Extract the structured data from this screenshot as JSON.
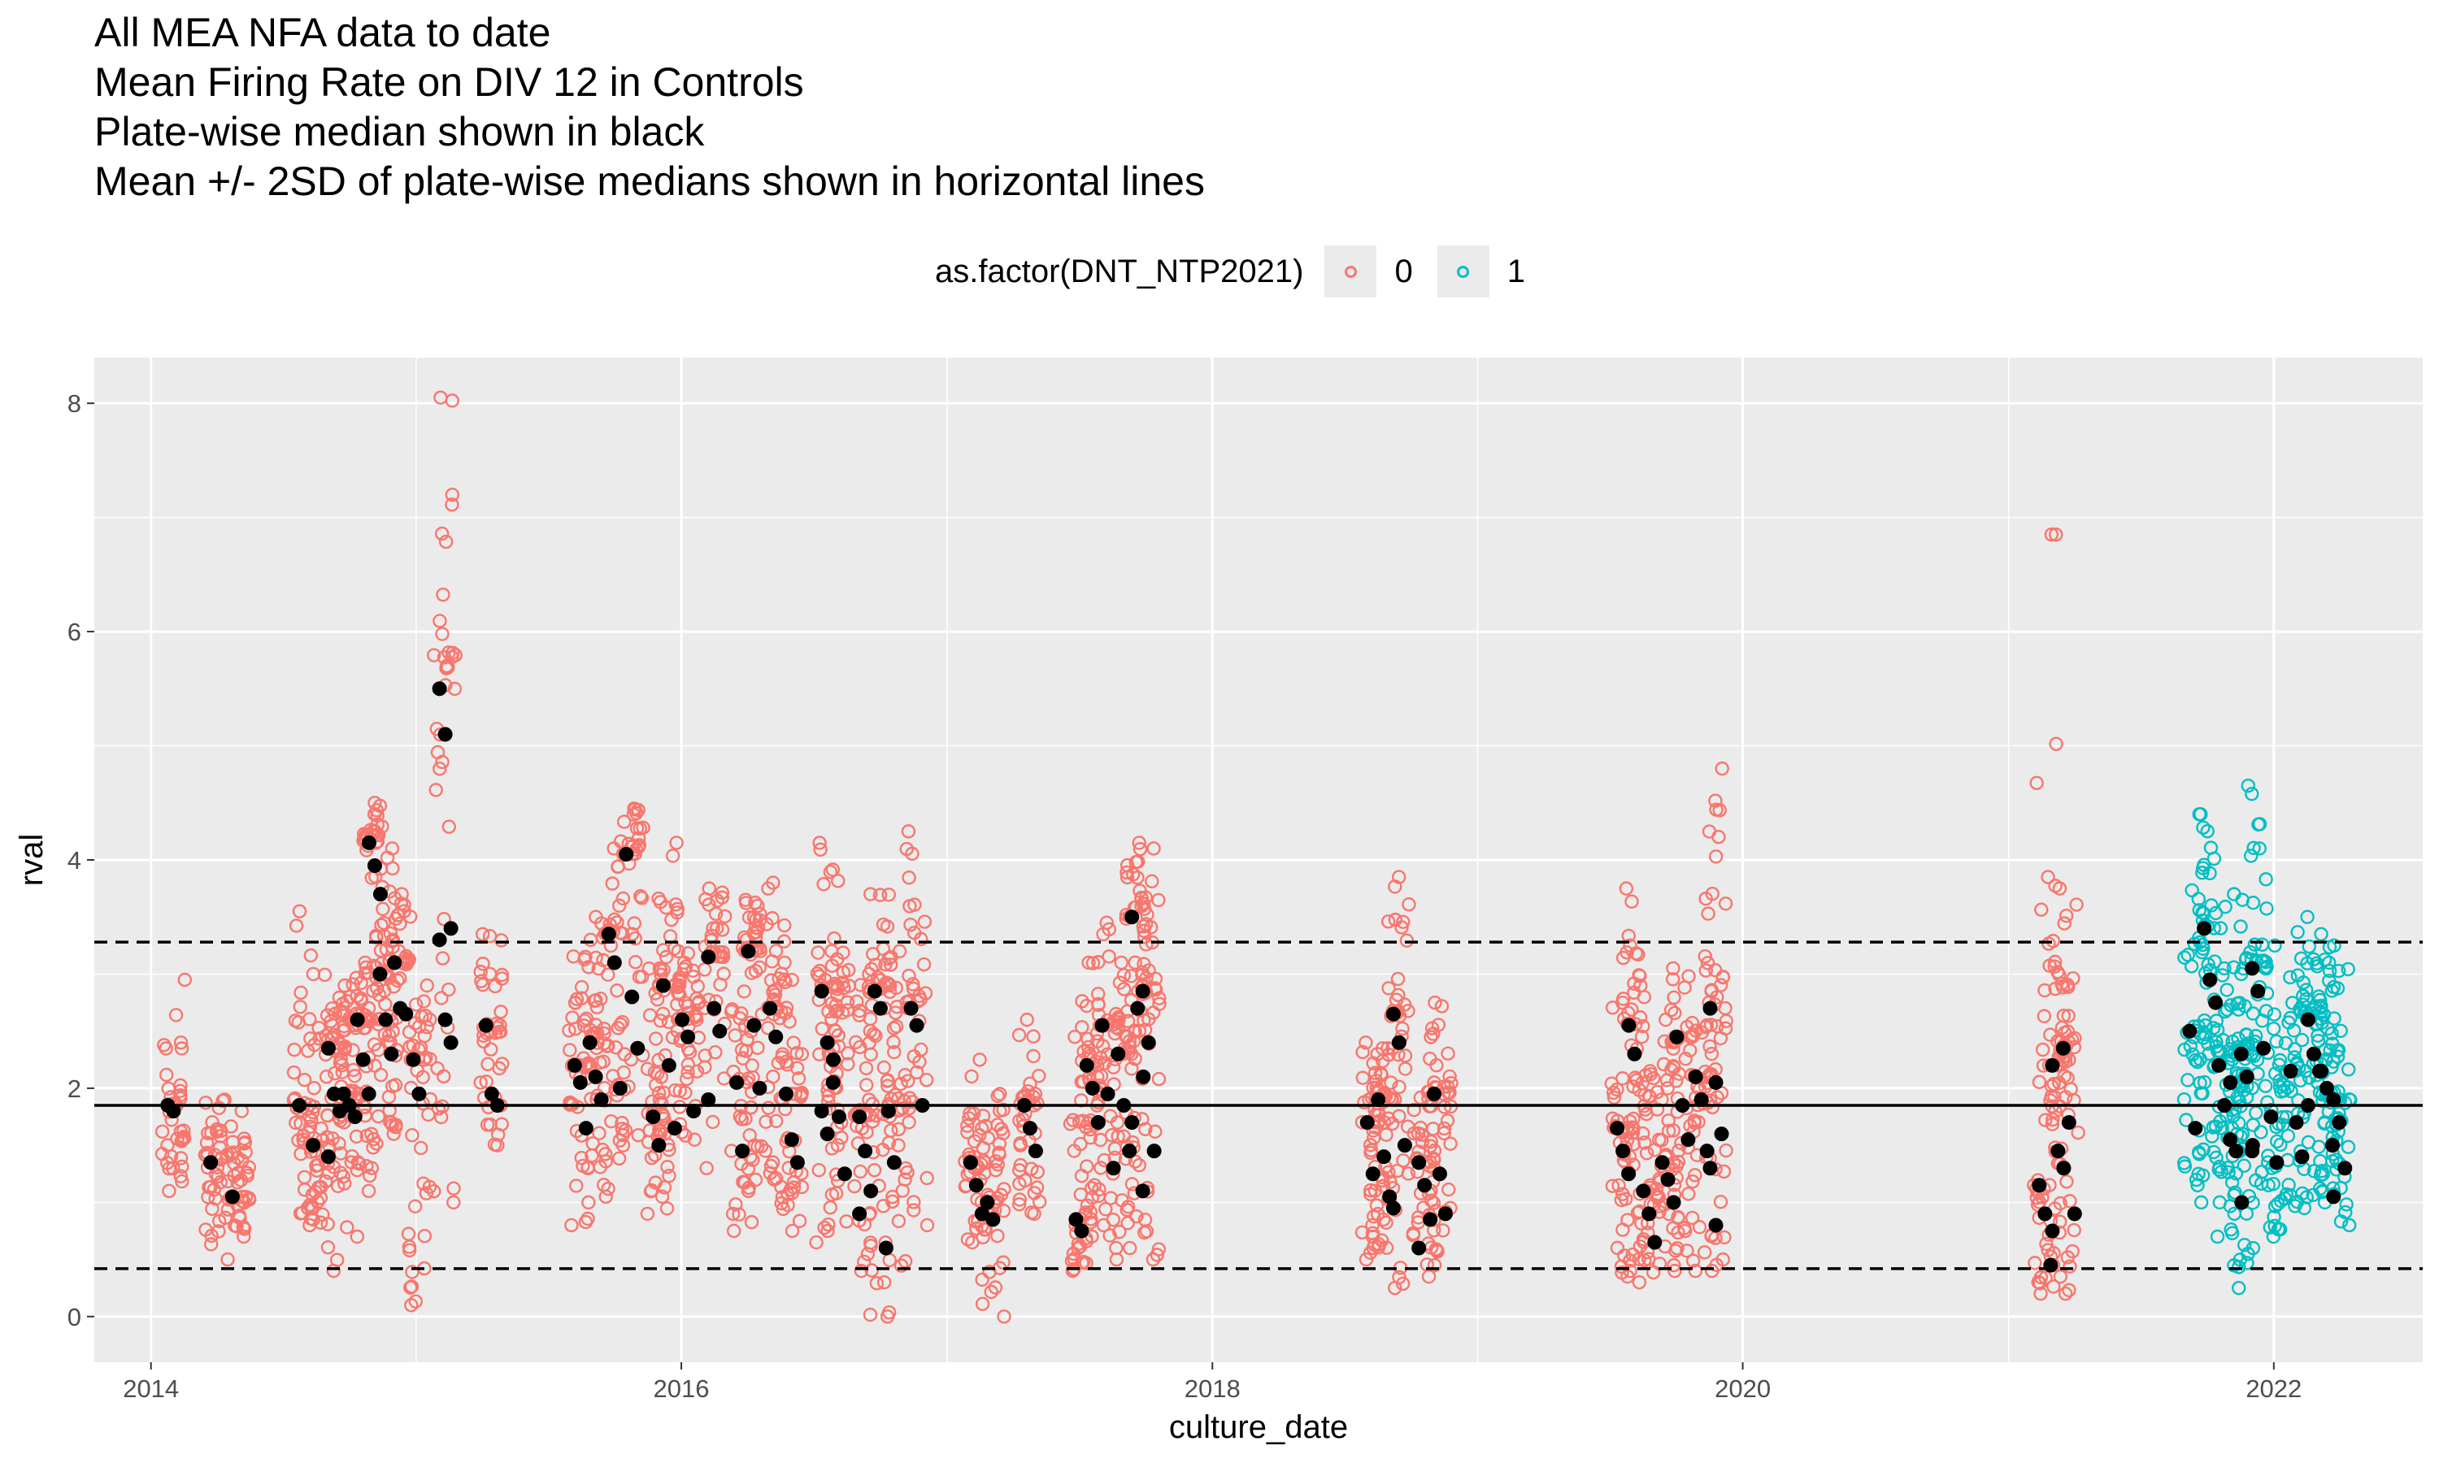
{
  "chart_data": {
    "type": "scatter",
    "title_lines": [
      "All MEA NFA data to date",
      "Mean Firing Rate on DIV 12 in Controls",
      "Plate-wise median shown in black",
      "Mean +/- 2SD of plate-wise medians shown in horizontal lines"
    ],
    "xlabel": "culture_date",
    "ylabel": "rval",
    "x_type": "date",
    "xlim": [
      "2013-10-15",
      "2022-07-25"
    ],
    "ylim": [
      -0.4,
      8.4
    ],
    "x_ticks": [
      "2014-01-01",
      "2016-01-01",
      "2018-01-01",
      "2020-01-01",
      "2022-01-01"
    ],
    "x_tick_labels": [
      "2014",
      "2016",
      "2018",
      "2020",
      "2022"
    ],
    "y_ticks": [
      0,
      2,
      4,
      6,
      8
    ],
    "y_tick_labels": [
      "0",
      "2",
      "4",
      "6",
      "8"
    ],
    "grid": true,
    "legend": {
      "title": "as.factor(DNT_NTP2021)",
      "position": "top",
      "entries": [
        {
          "label": "0",
          "color": "#F8766D"
        },
        {
          "label": "1",
          "color": "#00BFC4"
        }
      ]
    },
    "colors": {
      "group0": "#F8766D",
      "group1": "#00BFC4",
      "median": "#000000",
      "panel": "#EBEBEB",
      "grid": "#FFFFFF"
    },
    "reference_lines": [
      {
        "y": 1.85,
        "style": "solid"
      },
      {
        "y": 3.28,
        "style": "dashed"
      },
      {
        "y": 0.42,
        "style": "dashed"
      }
    ],
    "groups": [
      {
        "date": "2014-02-01",
        "g": 0,
        "min": 1.1,
        "max": 2.95,
        "med": [
          1.85,
          1.8
        ]
      },
      {
        "date": "2014-04-01",
        "g": 0,
        "min": 0.5,
        "max": 1.9,
        "med": [
          1.35
        ]
      },
      {
        "date": "2014-05-01",
        "g": 0,
        "min": 0.7,
        "max": 1.8,
        "med": [
          1.05
        ]
      },
      {
        "date": "2014-08-01",
        "g": 0,
        "min": 0.85,
        "max": 3.55,
        "med": [
          1.85
        ]
      },
      {
        "date": "2014-08-20",
        "g": 0,
        "min": 0.8,
        "max": 3.0,
        "med": [
          1.5
        ]
      },
      {
        "date": "2014-09-10",
        "g": 0,
        "min": 0.4,
        "max": 2.9,
        "med": [
          2.35,
          1.95,
          1.8,
          1.4
        ]
      },
      {
        "date": "2014-10-01",
        "g": 0,
        "min": 0.7,
        "max": 2.8,
        "med": [
          1.95,
          1.85,
          1.75
        ]
      },
      {
        "date": "2014-10-20",
        "g": 0,
        "min": 1.1,
        "max": 3.1,
        "med": [
          2.6,
          2.25,
          1.95
        ]
      },
      {
        "date": "2014-11-05",
        "g": 0,
        "min": 1.3,
        "max": 4.5,
        "med": [
          4.15,
          3.95,
          3.7
        ]
      },
      {
        "date": "2014-11-20",
        "g": 0,
        "min": 1.6,
        "max": 4.1,
        "med": [
          3.0,
          2.6,
          2.3
        ]
      },
      {
        "date": "2014-12-10",
        "g": 0,
        "min": 1.7,
        "max": 3.7,
        "med": [
          3.1,
          2.7,
          2.65
        ]
      },
      {
        "date": "2015-01-05",
        "g": 0,
        "min": 0.1,
        "max": 2.9,
        "med": [
          2.25,
          1.95
        ]
      },
      {
        "date": "2015-02-10",
        "g": 0,
        "min": 1.0,
        "max": 8.05,
        "med": [
          5.5,
          5.1,
          3.4,
          3.3,
          2.6,
          2.4
        ]
      },
      {
        "date": "2015-04-15",
        "g": 0,
        "min": 1.5,
        "max": 3.35,
        "med": [
          2.55,
          1.95,
          1.85
        ]
      },
      {
        "date": "2015-08-15",
        "g": 0,
        "min": 0.8,
        "max": 3.3,
        "med": [
          2.2,
          2.05,
          1.65
        ]
      },
      {
        "date": "2015-09-05",
        "g": 0,
        "min": 1.0,
        "max": 3.5,
        "med": [
          2.4,
          2.1,
          1.9
        ]
      },
      {
        "date": "2015-10-01",
        "g": 0,
        "min": 1.05,
        "max": 4.1,
        "med": [
          3.35,
          3.1,
          2.0
        ]
      },
      {
        "date": "2015-10-25",
        "g": 0,
        "min": 1.5,
        "max": 4.45,
        "med": [
          4.05,
          2.8,
          2.35
        ]
      },
      {
        "date": "2015-12-01",
        "g": 0,
        "min": 0.9,
        "max": 3.05,
        "med": [
          1.75,
          1.5
        ]
      },
      {
        "date": "2015-12-15",
        "g": 0,
        "min": 1.6,
        "max": 4.15,
        "med": [
          2.9,
          2.2,
          1.65
        ]
      },
      {
        "date": "2016-01-10",
        "g": 0,
        "min": 1.55,
        "max": 3.2,
        "med": [
          2.6,
          2.45,
          1.8
        ]
      },
      {
        "date": "2016-02-15",
        "g": 0,
        "min": 1.3,
        "max": 3.75,
        "med": [
          3.15,
          2.7,
          2.5,
          1.9
        ]
      },
      {
        "date": "2016-03-25",
        "g": 0,
        "min": 0.75,
        "max": 3.3,
        "med": [
          2.05,
          1.45
        ]
      },
      {
        "date": "2016-04-10",
        "g": 0,
        "min": 1.1,
        "max": 3.65,
        "med": [
          3.2,
          2.55,
          2.0
        ]
      },
      {
        "date": "2016-05-10",
        "g": 0,
        "min": 1.2,
        "max": 3.8,
        "med": [
          2.7,
          2.45
        ]
      },
      {
        "date": "2016-06-01",
        "g": 0,
        "min": 0.75,
        "max": 3.1,
        "med": [
          1.95,
          1.55,
          1.35
        ]
      },
      {
        "date": "2016-07-20",
        "g": 0,
        "min": 0.65,
        "max": 4.15,
        "med": [
          2.85,
          2.4,
          2.05,
          1.8,
          1.6
        ]
      },
      {
        "date": "2016-08-05",
        "g": 0,
        "min": 0.75,
        "max": 3.2,
        "med": [
          2.25,
          1.75,
          1.25
        ]
      },
      {
        "date": "2016-09-10",
        "g": 0,
        "min": 0.4,
        "max": 3.0,
        "med": [
          1.75,
          1.45,
          1.1,
          0.9
        ]
      },
      {
        "date": "2016-10-01",
        "g": 0,
        "min": 0.0,
        "max": 3.7,
        "med": [
          2.85,
          2.7,
          0.6
        ]
      },
      {
        "date": "2016-10-20",
        "g": 0,
        "min": 0.3,
        "max": 3.2,
        "med": [
          1.8,
          1.35
        ]
      },
      {
        "date": "2016-11-20",
        "g": 0,
        "min": 0.8,
        "max": 4.25,
        "med": [
          2.7,
          2.55,
          1.85
        ]
      },
      {
        "date": "2017-02-10",
        "g": 0,
        "min": 0.65,
        "max": 2.25,
        "med": [
          1.35,
          1.15,
          0.9
        ]
      },
      {
        "date": "2017-03-05",
        "g": 0,
        "min": 0.0,
        "max": 1.95,
        "med": [
          1.0,
          0.85
        ]
      },
      {
        "date": "2017-04-25",
        "g": 0,
        "min": 0.9,
        "max": 2.6,
        "med": [
          1.85,
          1.65,
          1.45
        ]
      },
      {
        "date": "2017-07-05",
        "g": 0,
        "min": 0.4,
        "max": 2.45,
        "med": [
          0.85,
          0.75
        ]
      },
      {
        "date": "2017-07-20",
        "g": 0,
        "min": 0.8,
        "max": 3.1,
        "med": [
          2.2,
          2.0,
          1.7
        ]
      },
      {
        "date": "2017-08-10",
        "g": 0,
        "min": 0.6,
        "max": 3.45,
        "med": [
          2.55,
          1.95,
          1.3
        ]
      },
      {
        "date": "2017-09-01",
        "g": 0,
        "min": 0.5,
        "max": 3.1,
        "med": [
          2.3,
          1.85,
          1.45
        ]
      },
      {
        "date": "2017-09-20",
        "g": 0,
        "min": 0.6,
        "max": 4.15,
        "med": [
          3.5,
          2.7,
          2.1,
          1.7
        ]
      },
      {
        "date": "2017-10-05",
        "g": 0,
        "min": 0.5,
        "max": 4.1,
        "med": [
          2.85,
          2.4,
          1.45,
          1.1
        ]
      },
      {
        "date": "2018-08-10",
        "g": 0,
        "min": 0.5,
        "max": 2.4,
        "med": [
          1.7,
          1.25
        ]
      },
      {
        "date": "2018-08-25",
        "g": 0,
        "min": 0.6,
        "max": 2.35,
        "med": [
          1.9,
          1.4,
          1.05
        ]
      },
      {
        "date": "2018-09-15",
        "g": 0,
        "min": 0.25,
        "max": 3.85,
        "med": [
          2.65,
          2.4,
          1.5,
          0.95
        ]
      },
      {
        "date": "2018-10-20",
        "g": 0,
        "min": 0.35,
        "max": 2.05,
        "med": [
          1.35,
          1.15,
          0.85,
          0.6
        ]
      },
      {
        "date": "2018-11-10",
        "g": 0,
        "min": 0.45,
        "max": 2.75,
        "med": [
          1.95,
          1.25,
          0.9
        ]
      },
      {
        "date": "2019-07-20",
        "g": 0,
        "min": 0.35,
        "max": 2.75,
        "med": [
          1.65,
          1.45,
          1.25
        ]
      },
      {
        "date": "2019-08-05",
        "g": 0,
        "min": 0.4,
        "max": 3.75,
        "med": [
          2.55,
          2.3
        ]
      },
      {
        "date": "2019-08-25",
        "g": 0,
        "min": 0.3,
        "max": 2.15,
        "med": [
          1.1,
          0.9,
          0.65
        ]
      },
      {
        "date": "2019-09-20",
        "g": 0,
        "min": 0.45,
        "max": 2.6,
        "med": [
          1.35,
          1.2,
          1.0
        ]
      },
      {
        "date": "2019-10-10",
        "g": 0,
        "min": 0.4,
        "max": 3.05,
        "med": [
          2.45,
          1.85,
          1.55
        ]
      },
      {
        "date": "2019-11-05",
        "g": 0,
        "min": 0.4,
        "max": 2.85,
        "med": [
          2.1,
          1.9,
          1.45
        ]
      },
      {
        "date": "2019-11-25",
        "g": 0,
        "min": 0.4,
        "max": 4.8,
        "med": [
          2.7,
          2.05,
          1.6,
          1.3,
          0.8
        ]
      },
      {
        "date": "2021-02-20",
        "g": 0,
        "min": 0.2,
        "max": 6.85,
        "med": [
          1.15,
          0.9,
          0.45
        ]
      },
      {
        "date": "2021-03-10",
        "g": 0,
        "min": 0.2,
        "max": 3.85,
        "med": [
          2.2,
          1.45,
          1.3,
          0.75
        ]
      },
      {
        "date": "2021-03-25",
        "g": 0,
        "min": 0.35,
        "max": 3.75,
        "med": [
          2.35,
          1.7,
          0.9
        ]
      },
      {
        "date": "2021-09-15",
        "g": 1,
        "min": 1.0,
        "max": 4.4,
        "med": [
          2.5,
          1.65
        ]
      },
      {
        "date": "2021-10-05",
        "g": 1,
        "min": 1.0,
        "max": 4.4,
        "med": [
          3.4,
          2.95,
          2.75
        ]
      },
      {
        "date": "2021-10-25",
        "g": 1,
        "min": 0.7,
        "max": 3.05,
        "med": [
          2.2,
          1.85,
          1.55
        ]
      },
      {
        "date": "2021-11-10",
        "g": 1,
        "min": 0.25,
        "max": 3.7,
        "med": [
          2.05,
          1.45,
          1.0
        ]
      },
      {
        "date": "2021-11-25",
        "g": 1,
        "min": 0.6,
        "max": 3.65,
        "med": [
          2.3,
          2.1,
          1.5
        ]
      },
      {
        "date": "2021-12-10",
        "g": 1,
        "min": 0.55,
        "max": 4.65,
        "med": [
          3.05,
          2.85,
          2.35,
          1.45
        ]
      },
      {
        "date": "2022-01-05",
        "g": 1,
        "min": 0.7,
        "max": 3.25,
        "med": [
          1.75,
          1.35
        ]
      },
      {
        "date": "2022-02-01",
        "g": 1,
        "min": 0.95,
        "max": 3.5,
        "med": [
          2.15,
          1.7,
          1.4
        ]
      },
      {
        "date": "2022-02-25",
        "g": 1,
        "min": 1.0,
        "max": 3.35,
        "med": [
          2.6,
          2.3,
          2.15,
          1.85
        ]
      },
      {
        "date": "2022-03-15",
        "g": 1,
        "min": 1.1,
        "max": 3.25,
        "med": [
          2.15,
          2.0,
          1.5
        ]
      },
      {
        "date": "2022-04-01",
        "g": 1,
        "min": 0.8,
        "max": 3.1,
        "med": [
          1.9,
          1.7,
          1.3,
          1.05
        ]
      }
    ],
    "outliers": [
      {
        "date": "2021-03-01",
        "y": 6.85,
        "g": 0
      }
    ]
  }
}
